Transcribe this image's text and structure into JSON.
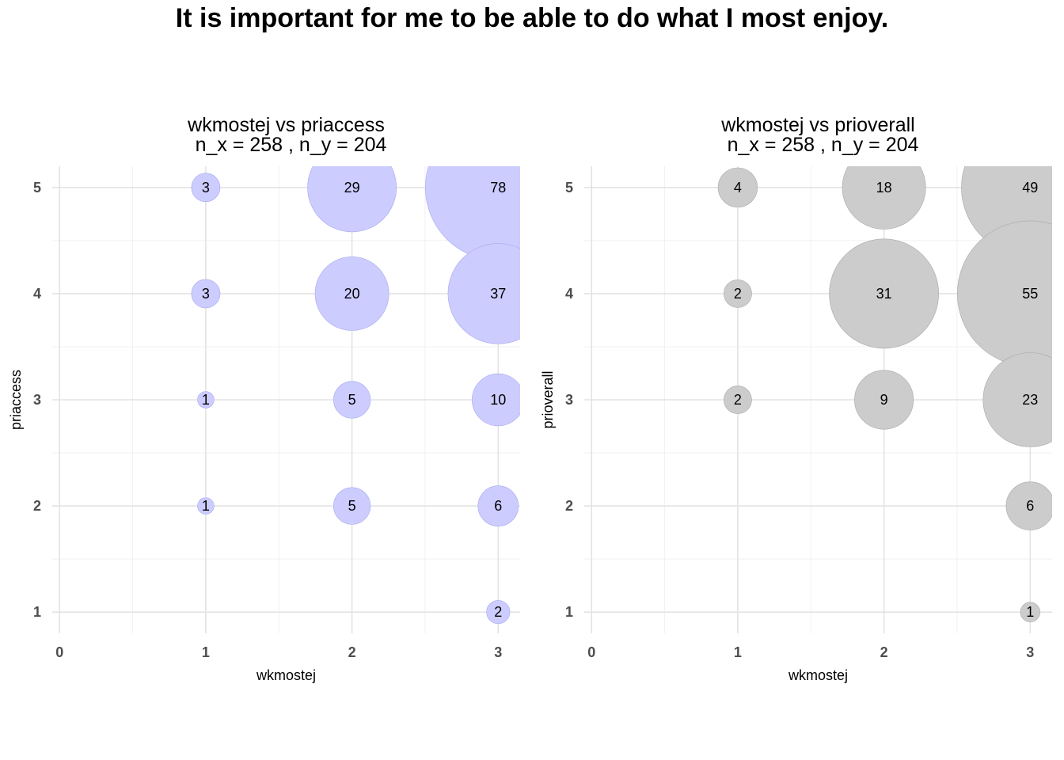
{
  "title": "It is important for me to be able to do what I most enjoy.",
  "chart_data": [
    {
      "type": "scatter",
      "title": "wkmostej vs priaccess",
      "subtitle": "n_x = 258 , n_y = 204",
      "xlabel": "wkmostej",
      "ylabel": "priaccess",
      "x_ticks": [
        "0",
        "1",
        "2",
        "3"
      ],
      "y_ticks": [
        "1",
        "2",
        "3",
        "4",
        "5"
      ],
      "xlim": [
        -0.05,
        3.15
      ],
      "ylim": [
        0.8,
        5.2
      ],
      "bubble_color": "#ccccff",
      "bubble_stroke": "#a8a8f0",
      "points": [
        {
          "x": 1,
          "y": 5,
          "n": 3
        },
        {
          "x": 2,
          "y": 5,
          "n": 29
        },
        {
          "x": 3,
          "y": 5,
          "n": 78
        },
        {
          "x": 1,
          "y": 4,
          "n": 3
        },
        {
          "x": 2,
          "y": 4,
          "n": 20
        },
        {
          "x": 3,
          "y": 4,
          "n": 37
        },
        {
          "x": 1,
          "y": 3,
          "n": 1
        },
        {
          "x": 2,
          "y": 3,
          "n": 5
        },
        {
          "x": 3,
          "y": 3,
          "n": 10
        },
        {
          "x": 1,
          "y": 2,
          "n": 1
        },
        {
          "x": 2,
          "y": 2,
          "n": 5
        },
        {
          "x": 3,
          "y": 2,
          "n": 6
        },
        {
          "x": 3,
          "y": 1,
          "n": 2
        }
      ]
    },
    {
      "type": "scatter",
      "title": "wkmostej vs prioverall",
      "subtitle": "n_x = 258 , n_y = 204",
      "xlabel": "wkmostej",
      "ylabel": "prioverall",
      "x_ticks": [
        "0",
        "1",
        "2",
        "3"
      ],
      "y_ticks": [
        "1",
        "2",
        "3",
        "4",
        "5"
      ],
      "xlim": [
        -0.05,
        3.15
      ],
      "ylim": [
        0.8,
        5.2
      ],
      "bubble_color": "#cccccc",
      "bubble_stroke": "#a8a8a8",
      "points": [
        {
          "x": 1,
          "y": 5,
          "n": 4
        },
        {
          "x": 2,
          "y": 5,
          "n": 18
        },
        {
          "x": 3,
          "y": 5,
          "n": 49
        },
        {
          "x": 1,
          "y": 4,
          "n": 2
        },
        {
          "x": 2,
          "y": 4,
          "n": 31
        },
        {
          "x": 3,
          "y": 4,
          "n": 55
        },
        {
          "x": 1,
          "y": 3,
          "n": 2
        },
        {
          "x": 2,
          "y": 3,
          "n": 9
        },
        {
          "x": 3,
          "y": 3,
          "n": 23
        },
        {
          "x": 3,
          "y": 2,
          "n": 6
        },
        {
          "x": 3,
          "y": 1,
          "n": 1
        }
      ]
    }
  ]
}
